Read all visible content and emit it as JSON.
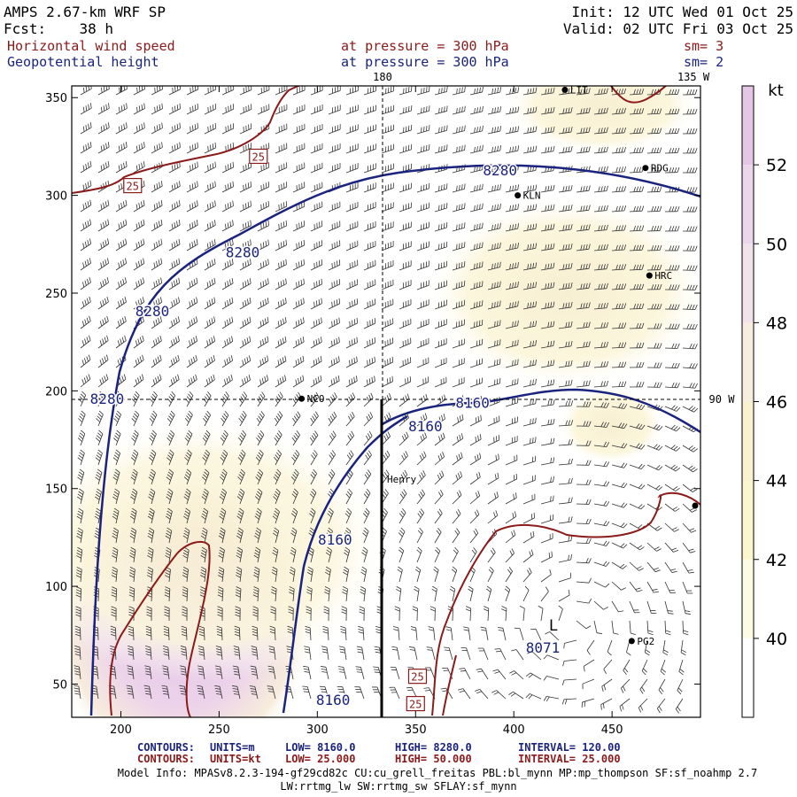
{
  "header": {
    "model": "AMPS 2.67-km WRF SP",
    "init": "Init: 12 UTC Wed 01 Oct 25",
    "fcst_label": "Fcst:",
    "fcst_value": "38 h",
    "valid": "Valid: 02 UTC Fri 03 Oct 25",
    "field1_name": "Horizontal wind speed",
    "field1_pressure": "at pressure =  300 hPa",
    "field1_sm": "sm= 3",
    "field2_name": "Geopotential height",
    "field2_pressure": "at pressure =  300 hPa",
    "field2_sm": "sm= 2"
  },
  "map_labels": {
    "lon_180": "180",
    "lon_135w": "135 W",
    "lon_90w": "90 W",
    "henry": "Henry",
    "low_center": "L",
    "low_value": "8071"
  },
  "stations": [
    {
      "id": "RDG",
      "x": 467,
      "y": 314
    },
    {
      "id": "KLN",
      "x": 402,
      "y": 300
    },
    {
      "id": "HRC",
      "x": 469,
      "y": 259
    },
    {
      "id": "NCO",
      "x": 292,
      "y": 196
    },
    {
      "id": "PG2",
      "x": 460,
      "y": 72
    },
    {
      "id": "LIT",
      "x": 426,
      "y": 354
    }
  ],
  "colorbar": {
    "unit": "kt",
    "ticks": [
      "52",
      "50",
      "48",
      "46",
      "44",
      "42",
      "40"
    ],
    "colors": [
      "#e6c6e6",
      "#ecd6ec",
      "#f2e2ea",
      "#f7eedf",
      "#f9f1cf",
      "#fbf6cd",
      "#fdfbe2",
      "#ffffff"
    ]
  },
  "footer": {
    "c1_label": "CONTOURS:",
    "c1_units": "UNITS=m",
    "c1_low": "LOW=  8160.0",
    "c1_high": "HIGH=  8280.0",
    "c1_interval": "INTERVAL=    120.00",
    "c2_label": "CONTOURS:",
    "c2_units": "UNITS=kt",
    "c2_low": "LOW=  25.000",
    "c2_high": "HIGH=  50.000",
    "c2_interval": "INTERVAL=    25.000",
    "model_info_1": "Model Info: MPASv8.2.3-194-gf29cd82c CU:cu_grell_freitas PBL:bl_mynn MP:mp_thompson SF:sf_noahmp 2.7",
    "model_info_2": "LW:rrtmg_lw SW:rrtmg_sw SFLAY:sf_mynn"
  },
  "chart_data": {
    "type": "contour",
    "title": "Horizontal wind speed / Geopotential height at 300 hPa",
    "x_range": [
      175,
      495
    ],
    "y_range": [
      33,
      356
    ],
    "x_ticks": [
      200,
      250,
      300,
      350,
      400,
      450
    ],
    "y_ticks": [
      50,
      100,
      150,
      200,
      250,
      300,
      350
    ],
    "height_contour_labels": [
      {
        "text": "8280",
        "x": 393,
        "y": 313
      },
      {
        "text": "8280",
        "x": 262,
        "y": 271
      },
      {
        "text": "8280",
        "x": 216,
        "y": 241
      },
      {
        "text": "8280",
        "x": 193,
        "y": 196
      },
      {
        "text": "8160",
        "x": 379,
        "y": 194
      },
      {
        "text": "8160",
        "x": 355,
        "y": 182
      },
      {
        "text": "8160",
        "x": 309,
        "y": 124
      },
      {
        "text": "8160",
        "x": 308,
        "y": 42
      }
    ],
    "speed_contour_labels": [
      {
        "text": "25",
        "x": 270,
        "y": 320
      },
      {
        "text": "25",
        "x": 206,
        "y": 305
      },
      {
        "text": "25",
        "x": 351,
        "y": 54
      },
      {
        "text": "25",
        "x": 350,
        "y": 40
      }
    ],
    "height_contours_m": [
      8160,
      8280
    ],
    "speed_contours_kt": [
      25,
      50
    ]
  }
}
